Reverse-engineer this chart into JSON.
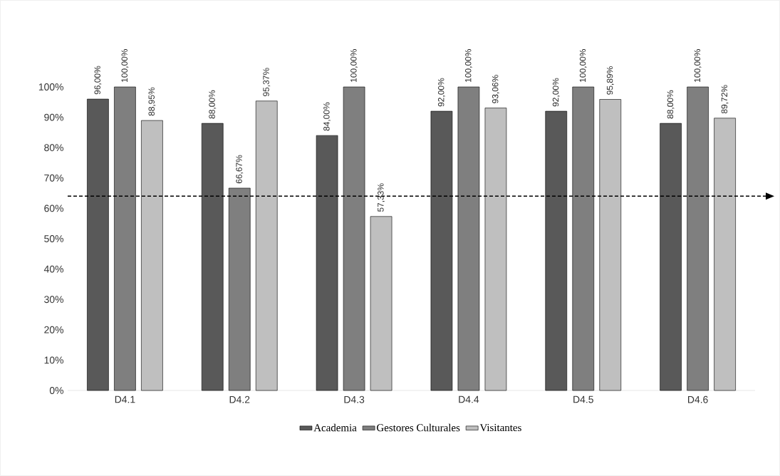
{
  "chart_data": {
    "type": "bar",
    "categories": [
      "D4.1",
      "D4.2",
      "D4.3",
      "D4.4",
      "D4.5",
      "D4.6"
    ],
    "series": [
      {
        "name": "Academia",
        "color": "#595959",
        "values": [
          96,
          88,
          84,
          92,
          92,
          88
        ],
        "value_labels": [
          "96,00%",
          "88,00%",
          "84,00%",
          "92,00%",
          "92,00%",
          "88,00%"
        ]
      },
      {
        "name": "Gestores Culturales",
        "color": "#7f7f7f",
        "values": [
          100,
          66.67,
          100,
          100,
          100,
          100
        ],
        "value_labels": [
          "100,00%",
          "66,67%",
          "100,00%",
          "100,00%",
          "100,00%",
          "100,00%"
        ]
      },
      {
        "name": "Visitantes",
        "color": "#bfbfbf",
        "values": [
          88.95,
          95.37,
          57.33,
          93.06,
          95.89,
          89.72
        ],
        "value_labels": [
          "88,95%",
          "95,37%",
          "57,33%",
          "93,06%",
          "95,89%",
          "89,72%"
        ]
      }
    ],
    "ylim": [
      0,
      100
    ],
    "yticks": [
      {
        "value": 0,
        "label": "0%"
      },
      {
        "value": 10,
        "label": "10%"
      },
      {
        "value": 20,
        "label": "20%"
      },
      {
        "value": 30,
        "label": "30%"
      },
      {
        "value": 40,
        "label": "40%"
      },
      {
        "value": 50,
        "label": "50%"
      },
      {
        "value": 60,
        "label": "60%"
      },
      {
        "value": 70,
        "label": "70%"
      },
      {
        "value": 80,
        "label": "80%"
      },
      {
        "value": 90,
        "label": "90%"
      },
      {
        "value": 100,
        "label": "100%"
      }
    ],
    "ref_lines": [
      {
        "axis": "y",
        "value": 64,
        "color": "#000000",
        "line_style": "dashed"
      }
    ],
    "legend": "bottom"
  }
}
